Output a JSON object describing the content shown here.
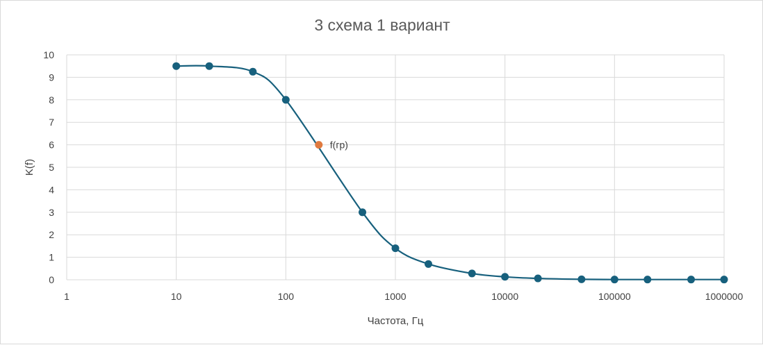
{
  "chart_data": {
    "type": "scatter",
    "title": "3 схема 1 вариант",
    "xlabel": "Частота, Гц",
    "ylabel": "K(f)",
    "xscale": "log",
    "xlim": [
      1,
      1000000
    ],
    "ylim": [
      0,
      10
    ],
    "grid": true,
    "x_ticks": [
      1,
      10,
      100,
      1000,
      10000,
      100000,
      1000000
    ],
    "x_tick_labels": [
      "1",
      "10",
      "100",
      "1000",
      "10000",
      "100000",
      "1000000"
    ],
    "y_ticks": [
      0,
      1,
      2,
      3,
      4,
      5,
      6,
      7,
      8,
      9,
      10
    ],
    "y_tick_labels": [
      "0",
      "1",
      "2",
      "3",
      "4",
      "5",
      "6",
      "7",
      "8",
      "9",
      "10"
    ],
    "series": [
      {
        "color": "#17607d",
        "line": "smooth",
        "x": [
          10,
          20,
          50,
          100,
          500,
          1000,
          2000,
          5000,
          10000,
          20000,
          50000,
          100000,
          200000,
          500000,
          1000000
        ],
        "y": [
          9.5,
          9.5,
          9.25,
          8,
          3,
          1.4,
          0.7,
          0.28,
          0.13,
          0.06,
          0.02,
          0.01,
          0.01,
          0.01,
          0.01
        ]
      },
      {
        "color": "#e07a3f",
        "line": "none",
        "x": [
          200
        ],
        "y": [
          6
        ],
        "labels": [
          "f(гр)"
        ]
      }
    ]
  }
}
